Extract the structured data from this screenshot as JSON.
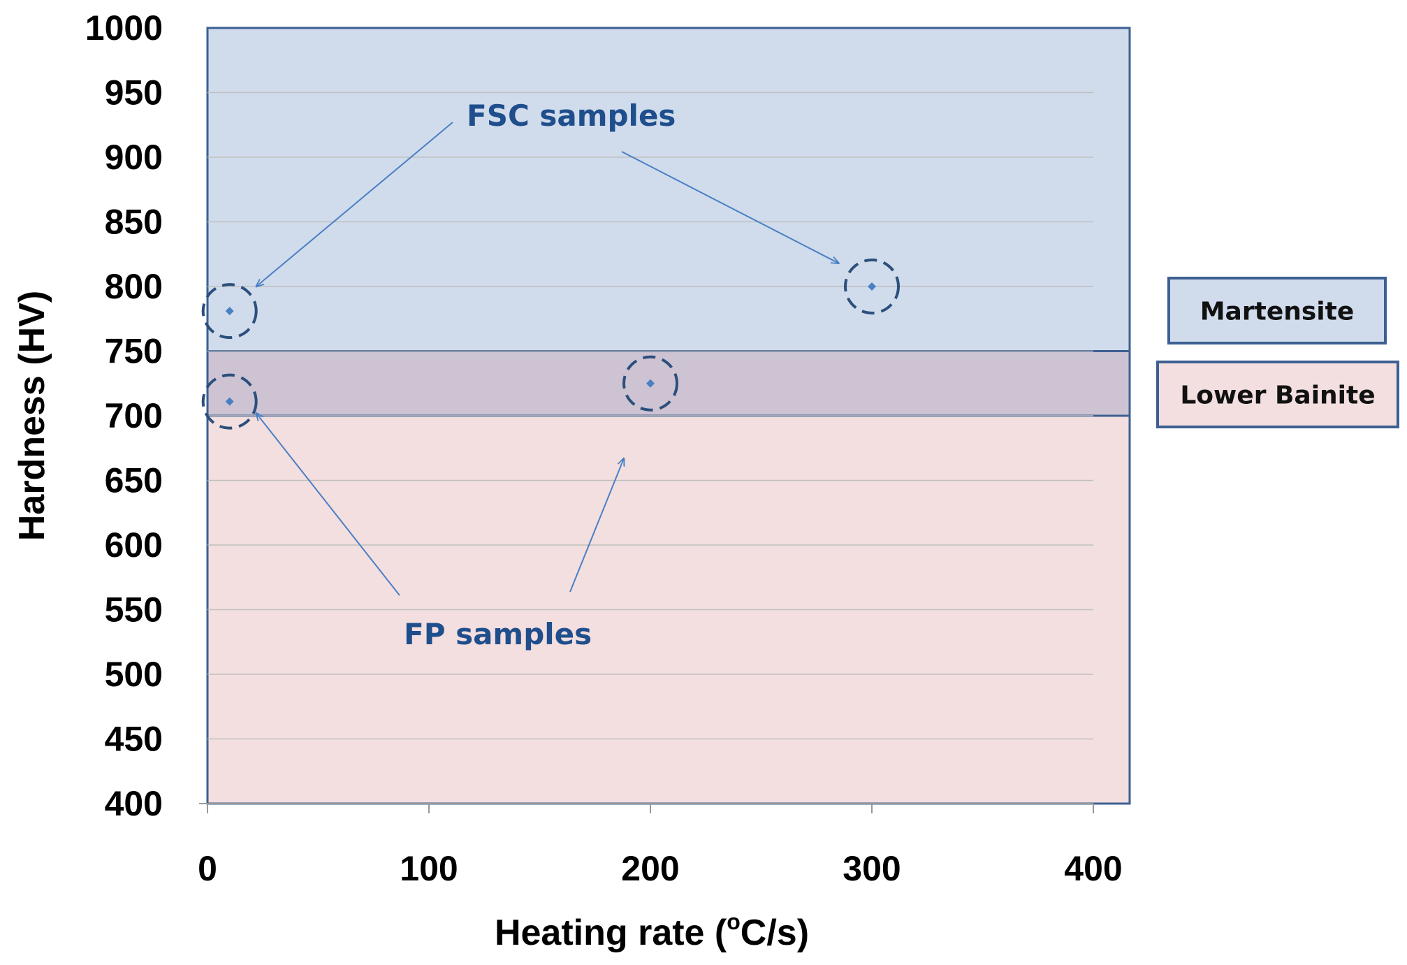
{
  "colors": {
    "martensite": "#d0dcec",
    "bainite": "#f3dfdf",
    "overlap": "#cdc3d3",
    "frame": "#3d5f92",
    "marker": "#2c4f7c",
    "annotation": "#1f4e8c",
    "arrow": "#4a7fc4",
    "grid": "#bfbfbf"
  },
  "chart_data": {
    "type": "scatter",
    "xlabel": "Heating rate (",
    "xlabel_sup": "o",
    "xlabel_tail": "C/s)",
    "ylabel": "Hardness (HV)",
    "xlim": [
      0,
      400
    ],
    "ylim": [
      400,
      1000
    ],
    "x_ticks": [
      "0",
      "100",
      "200",
      "300",
      "400"
    ],
    "y_ticks": [
      "400",
      "450",
      "500",
      "550",
      "600",
      "650",
      "700",
      "750",
      "800",
      "850",
      "900",
      "950",
      "1000"
    ],
    "grid": "horizontal",
    "regions": [
      {
        "name": "Martensite",
        "y_from": 700,
        "y_to": 1000
      },
      {
        "name": "Lower Bainite",
        "y_from": 400,
        "y_to": 750
      }
    ],
    "series": [
      {
        "name": "FSC samples",
        "points": [
          {
            "x": 10,
            "y": 781
          },
          {
            "x": 300,
            "y": 800
          }
        ]
      },
      {
        "name": "FP samples",
        "points": [
          {
            "x": 10,
            "y": 711
          },
          {
            "x": 200,
            "y": 725
          }
        ]
      }
    ],
    "annotations": [
      {
        "text": "FSC samples",
        "targets": [
          [
            22,
            800
          ],
          [
            285,
            818
          ]
        ]
      },
      {
        "text": "FP samples",
        "targets": [
          [
            22,
            702
          ],
          [
            188,
            667
          ]
        ]
      }
    ],
    "legend": [
      {
        "label": "Martensite"
      },
      {
        "label": "Lower Bainite"
      }
    ]
  }
}
